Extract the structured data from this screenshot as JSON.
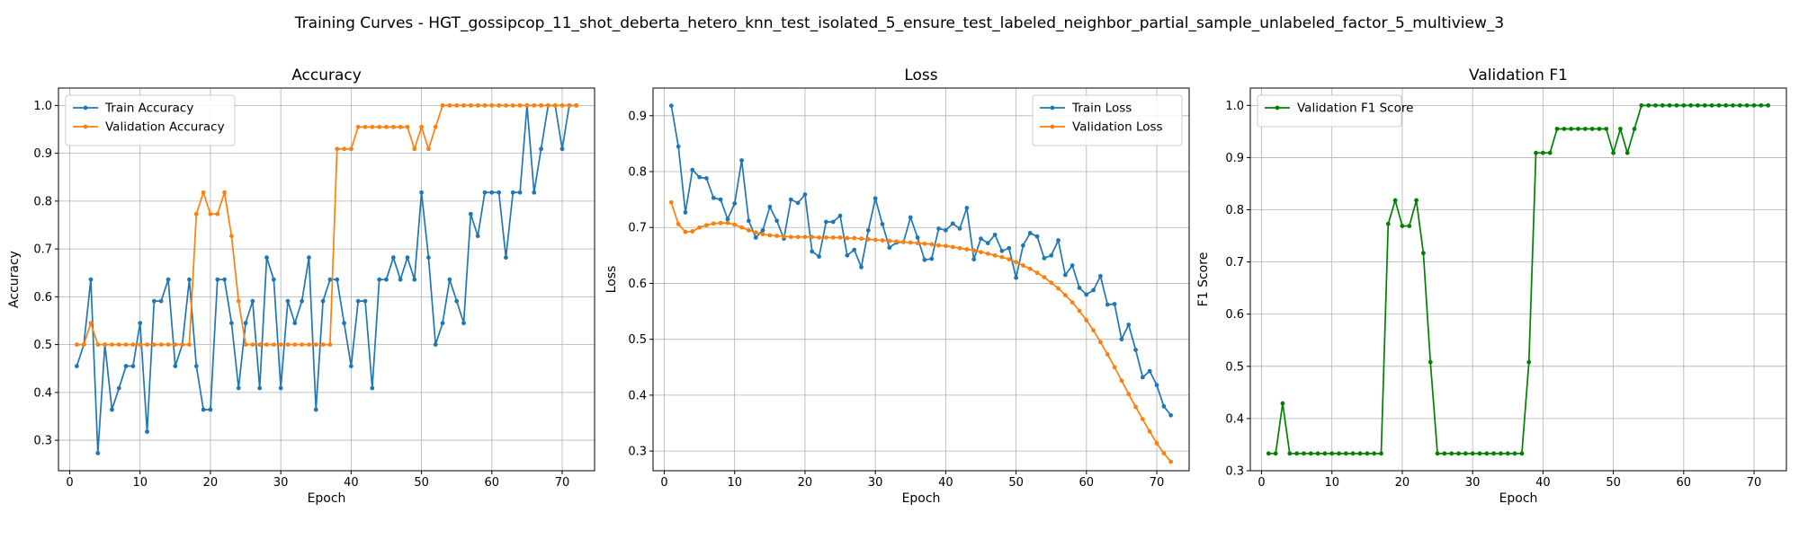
{
  "figure": {
    "suptitle": "Training Curves - HGT_gossipcop_11_shot_deberta_hetero_knn_test_isolated_5_ensure_test_labeled_neighbor_partial_sample_unlabeled_factor_5_multiview_3"
  },
  "chart_data": [
    {
      "type": "line",
      "title": "Accuracy",
      "xlabel": "Epoch",
      "ylabel": "Accuracy",
      "xlim": [
        -1.6,
        74.6
      ],
      "ylim": [
        0.2363,
        1.0364
      ],
      "xticks": [
        0,
        10,
        20,
        30,
        40,
        50,
        60,
        70
      ],
      "yticks": [
        0.3,
        0.4,
        0.5,
        0.6,
        0.7,
        0.8,
        0.9,
        1.0
      ],
      "ytick_labels": [
        "0.3",
        "0.4",
        "0.5",
        "0.6",
        "0.7",
        "0.8",
        "0.9",
        "1.0"
      ],
      "grid": true,
      "legend_position": "upper-left",
      "series": [
        {
          "name": "Train Accuracy",
          "color": "#1f77b4",
          "x": [
            1,
            2,
            3,
            4,
            5,
            6,
            7,
            8,
            9,
            10,
            11,
            12,
            13,
            14,
            15,
            16,
            17,
            18,
            19,
            20,
            21,
            22,
            23,
            24,
            25,
            26,
            27,
            28,
            29,
            30,
            31,
            32,
            33,
            34,
            35,
            36,
            37,
            38,
            39,
            40,
            41,
            42,
            43,
            44,
            45,
            46,
            47,
            48,
            49,
            50,
            51,
            52,
            53,
            54,
            55,
            56,
            57,
            58,
            59,
            60,
            61,
            62,
            63,
            64,
            65,
            66,
            67,
            68,
            69,
            70,
            71,
            72
          ],
          "values": [
            0.455,
            0.5,
            0.636,
            0.273,
            0.5,
            0.364,
            0.409,
            0.455,
            0.455,
            0.545,
            0.318,
            0.591,
            0.591,
            0.636,
            0.455,
            0.5,
            0.636,
            0.455,
            0.364,
            0.364,
            0.636,
            0.636,
            0.545,
            0.409,
            0.545,
            0.591,
            0.409,
            0.682,
            0.636,
            0.409,
            0.591,
            0.545,
            0.591,
            0.682,
            0.364,
            0.591,
            0.636,
            0.636,
            0.545,
            0.455,
            0.591,
            0.591,
            0.409,
            0.636,
            0.636,
            0.682,
            0.636,
            0.682,
            0.636,
            0.818,
            0.682,
            0.5,
            0.545,
            0.636,
            0.591,
            0.545,
            0.773,
            0.727,
            0.818,
            0.818,
            0.818,
            0.682,
            0.818,
            0.818,
            1.0,
            0.818,
            0.909,
            1.0,
            1.0,
            0.909,
            1.0,
            1.0
          ]
        },
        {
          "name": "Validation Accuracy",
          "color": "#ff7f0e",
          "x": [
            1,
            2,
            3,
            4,
            5,
            6,
            7,
            8,
            9,
            10,
            11,
            12,
            13,
            14,
            15,
            16,
            17,
            18,
            19,
            20,
            21,
            22,
            23,
            24,
            25,
            26,
            27,
            28,
            29,
            30,
            31,
            32,
            33,
            34,
            35,
            36,
            37,
            38,
            39,
            40,
            41,
            42,
            43,
            44,
            45,
            46,
            47,
            48,
            49,
            50,
            51,
            52,
            53,
            54,
            55,
            56,
            57,
            58,
            59,
            60,
            61,
            62,
            63,
            64,
            65,
            66,
            67,
            68,
            69,
            70,
            71,
            72
          ],
          "values": [
            0.5,
            0.5,
            0.545,
            0.5,
            0.5,
            0.5,
            0.5,
            0.5,
            0.5,
            0.5,
            0.5,
            0.5,
            0.5,
            0.5,
            0.5,
            0.5,
            0.5,
            0.773,
            0.818,
            0.773,
            0.773,
            0.818,
            0.727,
            0.591,
            0.5,
            0.5,
            0.5,
            0.5,
            0.5,
            0.5,
            0.5,
            0.5,
            0.5,
            0.5,
            0.5,
            0.5,
            0.5,
            0.909,
            0.909,
            0.909,
            0.955,
            0.955,
            0.955,
            0.955,
            0.955,
            0.955,
            0.955,
            0.955,
            0.909,
            0.955,
            0.909,
            0.955,
            1.0,
            1.0,
            1.0,
            1.0,
            1.0,
            1.0,
            1.0,
            1.0,
            1.0,
            1.0,
            1.0,
            1.0,
            1.0,
            1.0,
            1.0,
            1.0,
            1.0,
            1.0,
            1.0,
            1.0
          ]
        }
      ]
    },
    {
      "type": "line",
      "title": "Loss",
      "xlabel": "Epoch",
      "ylabel": "Loss",
      "xlim": [
        -1.6,
        74.6
      ],
      "ylim": [
        0.2648,
        0.9495
      ],
      "xticks": [
        0,
        10,
        20,
        30,
        40,
        50,
        60,
        70
      ],
      "yticks": [
        0.3,
        0.4,
        0.5,
        0.6,
        0.7,
        0.8,
        0.9
      ],
      "ytick_labels": [
        "0.3",
        "0.4",
        "0.5",
        "0.6",
        "0.7",
        "0.8",
        "0.9"
      ],
      "grid": true,
      "legend_position": "upper-right",
      "series": [
        {
          "name": "Train Loss",
          "color": "#1f77b4",
          "x": [
            1,
            2,
            3,
            4,
            5,
            6,
            7,
            8,
            9,
            10,
            11,
            12,
            13,
            14,
            15,
            16,
            17,
            18,
            19,
            20,
            21,
            22,
            23,
            24,
            25,
            26,
            27,
            28,
            29,
            30,
            31,
            32,
            33,
            34,
            35,
            36,
            37,
            38,
            39,
            40,
            41,
            42,
            43,
            44,
            45,
            46,
            47,
            48,
            49,
            50,
            51,
            52,
            53,
            54,
            55,
            56,
            57,
            58,
            59,
            60,
            61,
            62,
            63,
            64,
            65,
            66,
            67,
            68,
            69,
            70,
            71,
            72
          ],
          "values": [
            0.918,
            0.845,
            0.727,
            0.803,
            0.79,
            0.788,
            0.753,
            0.75,
            0.715,
            0.743,
            0.82,
            0.712,
            0.682,
            0.695,
            0.737,
            0.712,
            0.68,
            0.75,
            0.744,
            0.759,
            0.657,
            0.648,
            0.71,
            0.71,
            0.721,
            0.65,
            0.66,
            0.629,
            0.695,
            0.752,
            0.706,
            0.664,
            0.673,
            0.674,
            0.718,
            0.682,
            0.642,
            0.644,
            0.698,
            0.695,
            0.707,
            0.698,
            0.735,
            0.643,
            0.68,
            0.672,
            0.687,
            0.658,
            0.663,
            0.61,
            0.668,
            0.69,
            0.684,
            0.645,
            0.65,
            0.677,
            0.615,
            0.632,
            0.592,
            0.58,
            0.588,
            0.613,
            0.562,
            0.563,
            0.5,
            0.526,
            0.481,
            0.432,
            0.443,
            0.418,
            0.38,
            0.364
          ]
        },
        {
          "name": "Validation Loss",
          "color": "#ff7f0e",
          "x": [
            1,
            2,
            3,
            4,
            5,
            6,
            7,
            8,
            9,
            10,
            11,
            12,
            13,
            14,
            15,
            16,
            17,
            18,
            19,
            20,
            21,
            22,
            23,
            24,
            25,
            26,
            27,
            28,
            29,
            30,
            31,
            32,
            33,
            34,
            35,
            36,
            37,
            38,
            39,
            40,
            41,
            42,
            43,
            44,
            45,
            46,
            47,
            48,
            49,
            50,
            51,
            52,
            53,
            54,
            55,
            56,
            57,
            58,
            59,
            60,
            61,
            62,
            63,
            64,
            65,
            66,
            67,
            68,
            69,
            70,
            71,
            72
          ],
          "values": [
            0.745,
            0.706,
            0.692,
            0.693,
            0.7,
            0.704,
            0.707,
            0.708,
            0.708,
            0.705,
            0.7,
            0.695,
            0.691,
            0.688,
            0.686,
            0.685,
            0.684,
            0.683,
            0.683,
            0.683,
            0.683,
            0.682,
            0.682,
            0.682,
            0.682,
            0.681,
            0.681,
            0.68,
            0.679,
            0.678,
            0.677,
            0.676,
            0.675,
            0.674,
            0.673,
            0.672,
            0.671,
            0.67,
            0.668,
            0.667,
            0.665,
            0.663,
            0.661,
            0.659,
            0.656,
            0.653,
            0.65,
            0.647,
            0.643,
            0.638,
            0.632,
            0.626,
            0.619,
            0.611,
            0.601,
            0.591,
            0.579,
            0.566,
            0.551,
            0.534,
            0.516,
            0.495,
            0.473,
            0.45,
            0.426,
            0.402,
            0.379,
            0.357,
            0.335,
            0.314,
            0.296,
            0.281
          ]
        }
      ]
    },
    {
      "type": "line",
      "title": "Validation F1",
      "xlabel": "Epoch",
      "ylabel": "F1 Score",
      "xlim": [
        -1.6,
        74.6
      ],
      "ylim": [
        0.3,
        1.0333
      ],
      "xticks": [
        0,
        10,
        20,
        30,
        40,
        50,
        60,
        70
      ],
      "yticks": [
        0.3,
        0.4,
        0.5,
        0.6,
        0.7,
        0.8,
        0.9,
        1.0
      ],
      "ytick_labels": [
        "0.3",
        "0.4",
        "0.5",
        "0.6",
        "0.7",
        "0.8",
        "0.9",
        "1.0"
      ],
      "grid": true,
      "legend_position": "upper-left",
      "series": [
        {
          "name": "Validation F1 Score",
          "color": "#008000",
          "x": [
            1,
            2,
            3,
            4,
            5,
            6,
            7,
            8,
            9,
            10,
            11,
            12,
            13,
            14,
            15,
            16,
            17,
            18,
            19,
            20,
            21,
            22,
            23,
            24,
            25,
            26,
            27,
            28,
            29,
            30,
            31,
            32,
            33,
            34,
            35,
            36,
            37,
            38,
            39,
            40,
            41,
            42,
            43,
            44,
            45,
            46,
            47,
            48,
            49,
            50,
            51,
            52,
            53,
            54,
            55,
            56,
            57,
            58,
            59,
            60,
            61,
            62,
            63,
            64,
            65,
            66,
            67,
            68,
            69,
            70,
            71,
            72
          ],
          "values": [
            0.333,
            0.333,
            0.429,
            0.333,
            0.333,
            0.333,
            0.333,
            0.333,
            0.333,
            0.333,
            0.333,
            0.333,
            0.333,
            0.333,
            0.333,
            0.333,
            0.333,
            0.773,
            0.818,
            0.769,
            0.769,
            0.818,
            0.717,
            0.508,
            0.333,
            0.333,
            0.333,
            0.333,
            0.333,
            0.333,
            0.333,
            0.333,
            0.333,
            0.333,
            0.333,
            0.333,
            0.333,
            0.508,
            0.909,
            0.909,
            0.909,
            0.955,
            0.955,
            0.955,
            0.955,
            0.955,
            0.955,
            0.955,
            0.955,
            0.909,
            0.955,
            0.909,
            0.955,
            1.0,
            1.0,
            1.0,
            1.0,
            1.0,
            1.0,
            1.0,
            1.0,
            1.0,
            1.0,
            1.0,
            1.0,
            1.0,
            1.0,
            1.0,
            1.0,
            1.0,
            1.0,
            1.0
          ]
        }
      ]
    }
  ]
}
